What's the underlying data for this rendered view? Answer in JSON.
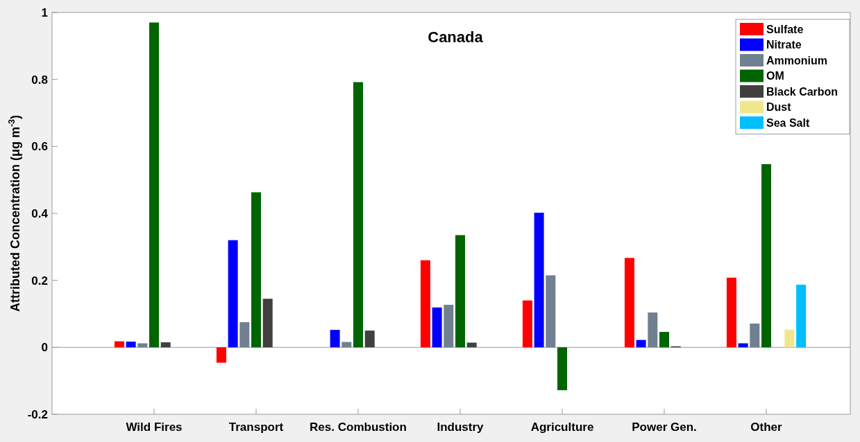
{
  "chart_data": {
    "type": "bar",
    "title": "Canada",
    "ylabel": "Attributed Concentration (μg m$^{-3}$)",
    "categories": [
      "Wild Fires",
      "Transport",
      "Res. Combustion",
      "Industry",
      "Agriculture",
      "Power Gen.",
      "Other"
    ],
    "ylim": [
      -0.2,
      1
    ],
    "yticks": [
      -0.2,
      0,
      0.2,
      0.4,
      0.6,
      0.8,
      1
    ],
    "legend": "top right",
    "series": [
      {
        "name": "Sulfate",
        "color": "#ff0000",
        "values": [
          0.018,
          -0.046,
          0,
          0.26,
          0.14,
          0.267,
          0.208
        ]
      },
      {
        "name": "Nitrate",
        "color": "#0000ff",
        "values": [
          0.017,
          0.32,
          0.052,
          0.119,
          0.402,
          0.022,
          0.012
        ]
      },
      {
        "name": "Ammonium",
        "color": "#708090",
        "values": [
          0.012,
          0.075,
          0.016,
          0.127,
          0.215,
          0.104,
          0.071
        ]
      },
      {
        "name": "OM",
        "color": "#006400",
        "values": [
          0.97,
          0.463,
          0.792,
          0.335,
          -0.128,
          0.046,
          0.547
        ]
      },
      {
        "name": "Black Carbon",
        "color": "#404040",
        "values": [
          0.015,
          0.145,
          0.05,
          0.014,
          0,
          0.003,
          0
        ]
      },
      {
        "name": "Dust",
        "color": "#f0e68c",
        "values": [
          0,
          0,
          0,
          0,
          0,
          0,
          0.053
        ]
      },
      {
        "name": "Sea Salt",
        "color": "#00bfff",
        "values": [
          0,
          0,
          0,
          0,
          0,
          0,
          0.187
        ]
      }
    ]
  }
}
